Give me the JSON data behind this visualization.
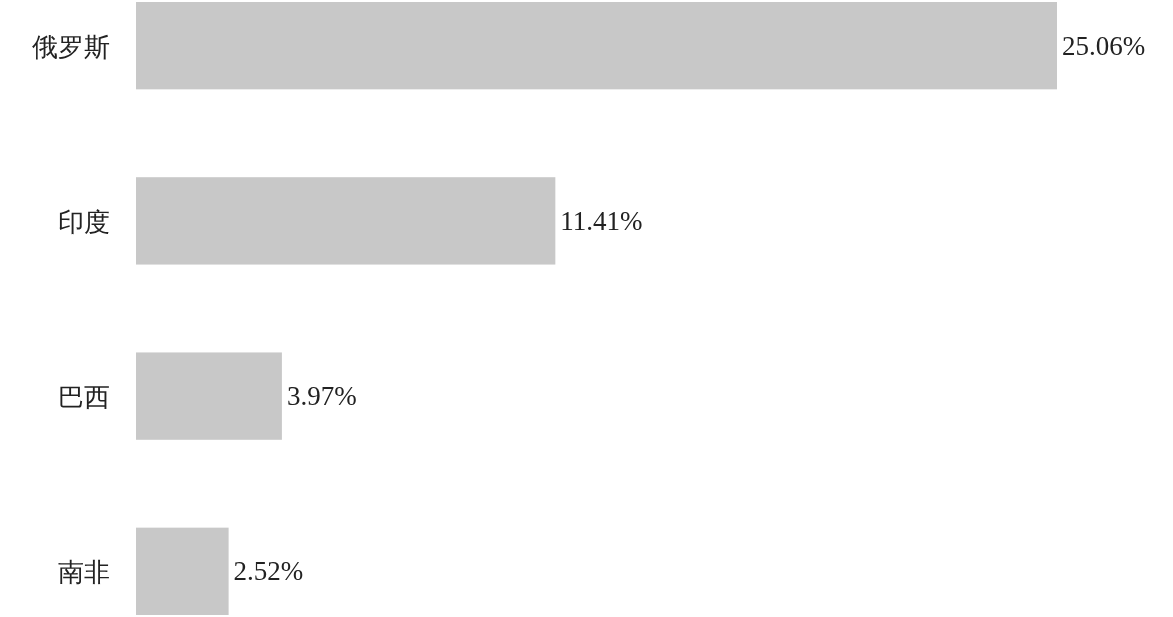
{
  "chart_data": {
    "type": "bar",
    "orientation": "horizontal",
    "categories": [
      "俄罗斯",
      "印度",
      "巴西",
      "南非"
    ],
    "values": [
      25.06,
      11.41,
      3.97,
      2.52
    ],
    "value_labels": [
      "25.06%",
      "11.41%",
      "3.97%",
      "2.52%"
    ],
    "color": "#c8c8c8"
  }
}
